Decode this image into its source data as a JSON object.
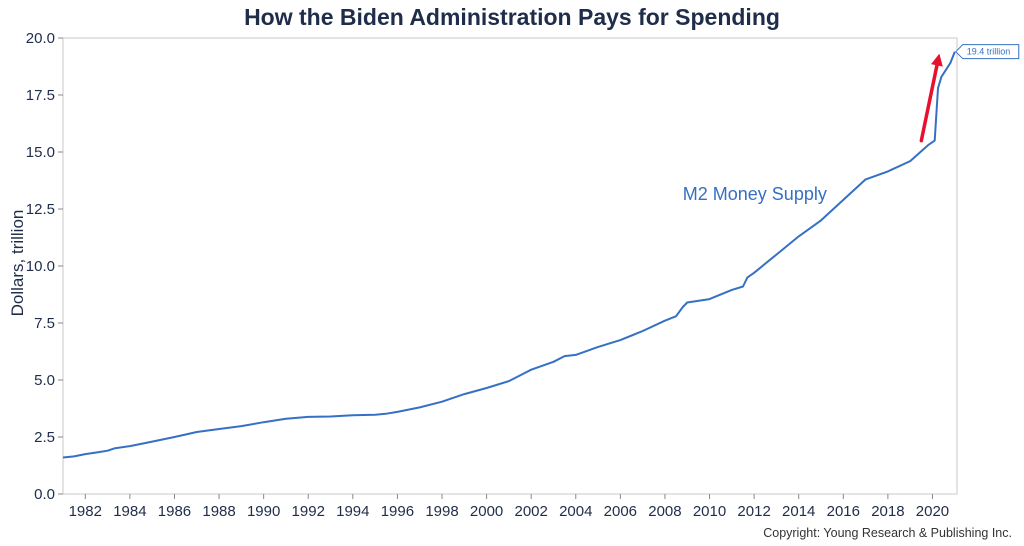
{
  "chart_data": {
    "type": "line",
    "title": "How the Biden Administration Pays for Spending",
    "ylabel": "Dollars, trillion",
    "xlabel": "",
    "xlim": [
      1981,
      2021.1
    ],
    "ylim": [
      0,
      20
    ],
    "yticks": [
      "0.0",
      "2.5",
      "5.0",
      "7.5",
      "10.0",
      "12.5",
      "15.0",
      "17.5",
      "20.0"
    ],
    "xticks": [
      "1982",
      "1984",
      "1986",
      "1988",
      "1990",
      "1992",
      "1994",
      "1996",
      "1998",
      "2000",
      "2002",
      "2004",
      "2006",
      "2008",
      "2010",
      "2012",
      "2014",
      "2016",
      "2018",
      "2020"
    ],
    "grid": false,
    "series": [
      {
        "name": "M2 Money Supply",
        "color": "#3570c4",
        "x": [
          1981.0,
          1981.5,
          1982.0,
          1982.5,
          1983.0,
          1983.3,
          1984.0,
          1985.0,
          1986.0,
          1987.0,
          1988.0,
          1989.0,
          1990.0,
          1991.0,
          1992.0,
          1993.0,
          1994.0,
          1995.0,
          1995.5,
          1996.0,
          1997.0,
          1998.0,
          1999.0,
          2000.0,
          2001.0,
          2001.8,
          2002.0,
          2003.0,
          2003.5,
          2004.0,
          2005.0,
          2006.0,
          2007.0,
          2008.0,
          2008.5,
          2008.8,
          2009.0,
          2010.0,
          2011.0,
          2011.5,
          2011.7,
          2012.0,
          2013.0,
          2014.0,
          2015.0,
          2016.0,
          2017.0,
          2018.0,
          2019.0,
          2019.8,
          2020.1,
          2020.25,
          2020.4,
          2020.6,
          2020.8,
          2021.0
        ],
        "values": [
          1.6,
          1.65,
          1.75,
          1.82,
          1.9,
          2.0,
          2.1,
          2.3,
          2.5,
          2.72,
          2.85,
          2.98,
          3.15,
          3.3,
          3.38,
          3.4,
          3.45,
          3.48,
          3.52,
          3.6,
          3.8,
          4.05,
          4.38,
          4.65,
          4.95,
          5.35,
          5.45,
          5.8,
          6.05,
          6.1,
          6.45,
          6.75,
          7.15,
          7.6,
          7.8,
          8.2,
          8.4,
          8.55,
          8.95,
          9.1,
          9.5,
          9.7,
          10.5,
          11.3,
          12.0,
          12.9,
          13.8,
          14.15,
          14.6,
          15.3,
          15.5,
          17.8,
          18.3,
          18.6,
          18.9,
          19.4
        ]
      }
    ],
    "annotations": {
      "series_label": "M2 Money Supply",
      "last_value_callout": "19.4 trillion",
      "arrow_color": "#e8102d"
    }
  },
  "footer": {
    "copyright": "Copyright: Young Research & Publishing Inc."
  }
}
